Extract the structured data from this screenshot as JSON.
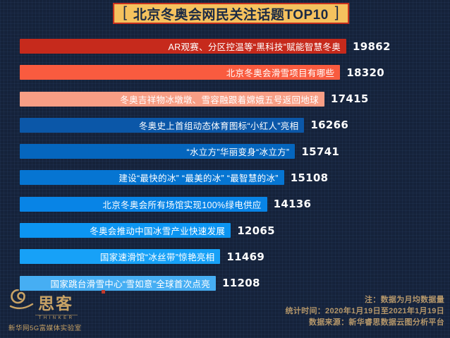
{
  "title": {
    "bracket_left": "[",
    "text": "北京冬奥会网民关注话题TOP10",
    "bracket_right": "]",
    "bg_color": "#f5c25e",
    "border_color": "#c52f1d",
    "text_color": "#1b2a44"
  },
  "chart_data": {
    "type": "bar",
    "orientation": "horizontal",
    "title": "北京冬奥会网民关注话题TOP10",
    "value_range": [
      0,
      19862
    ],
    "legend": "none",
    "grid": "off",
    "items": [
      {
        "label": "AR观赛、分区控温等“黑科技”赋能智慧冬奥",
        "value": 19862,
        "color": "#c62a1c"
      },
      {
        "label": "北京冬奥会滑雪项目有哪些",
        "value": 18320,
        "color": "#f95b3f"
      },
      {
        "label": "冬奥吉祥物冰墩墩、雪容融跟着嫦娥五号返回地球",
        "value": 17415,
        "color": "#f89e85"
      },
      {
        "label": "冬奥史上首组动态体育图标“小红人”亮相",
        "value": 16266,
        "color": "#0b57a8"
      },
      {
        "label": "“水立方”华丽变身“冰立方”",
        "value": 15741,
        "color": "#0566be"
      },
      {
        "label": "建设“最快的冰” “最美的冰” “最智慧的冰”",
        "value": 15108,
        "color": "#0675d2"
      },
      {
        "label": "北京冬奥会所有场馆实现100%绿电供应",
        "value": 14136,
        "color": "#0884e6"
      },
      {
        "label": "冬奥会推动中国冰雪产业快速发展",
        "value": 12065,
        "color": "#0c95f2"
      },
      {
        "label": "国家速滑馆“冰丝带”惊艳亮相",
        "value": 11469,
        "color": "#17a1f7"
      },
      {
        "label": "国家跳台滑雪中心“雪如意”全球首次点亮",
        "value": 11208,
        "color": "#46aef3"
      }
    ]
  },
  "footer": {
    "logo": {
      "name": "思客",
      "subtitle": "THINKER",
      "org": "新华网5G富媒体实验室",
      "gold_color": "#c9a365"
    },
    "notes": [
      "注：数据为月均数据量",
      "统计时间：2020年1月19日至2021年1月19日",
      "数据来源：新华睿思数据云图分析平台"
    ]
  }
}
